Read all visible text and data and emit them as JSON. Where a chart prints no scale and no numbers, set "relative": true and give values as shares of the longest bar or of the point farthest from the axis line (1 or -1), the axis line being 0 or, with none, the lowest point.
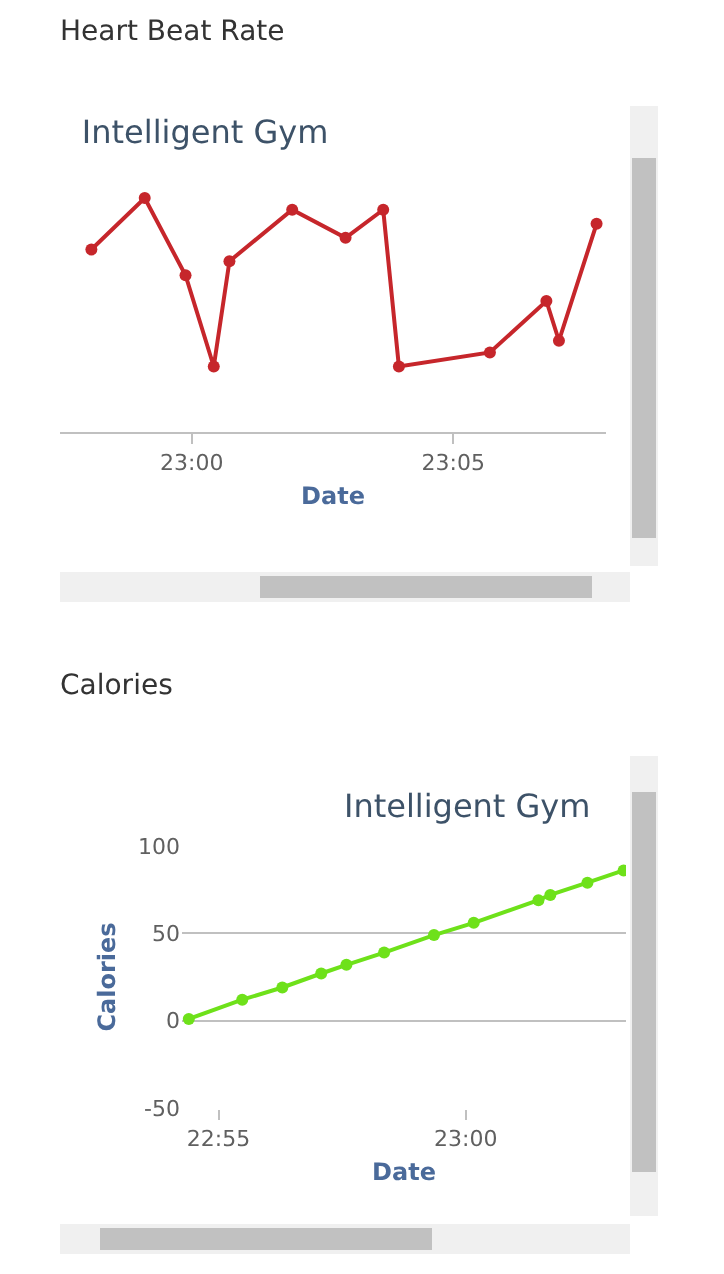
{
  "chart_data": [
    {
      "type": "line",
      "title": "Heart Beat Rate",
      "subtitle": "Intelligent Gym",
      "xlabel": "Date",
      "relative": true,
      "tick_labels": "x",
      "marker": "circle",
      "line_style": "solid",
      "x": [
        22.968,
        22.985,
        22.998,
        23.007,
        23.012,
        23.032,
        23.049,
        23.061,
        23.066,
        23.095,
        23.113,
        23.117,
        23.129
      ],
      "xlim": [
        22.958,
        23.132
      ],
      "xticks": [
        {
          "value": 23,
          "label": "23:00"
        },
        {
          "value": 23.0833,
          "label": "23:05"
        }
      ],
      "series": [
        {
          "color": "#c6262b",
          "values": [
            0.78,
            1,
            0.67,
            0.28,
            0.73,
            0.95,
            0.83,
            0.95,
            0.28,
            0.34,
            0.56,
            0.39,
            0.89
          ]
        }
      ]
    },
    {
      "type": "line",
      "title": "Calories",
      "subtitle": "Intelligent Gym",
      "xlabel": "Date",
      "ylabel": "Calories",
      "grid": "y",
      "marker": "circle",
      "line_style": "solid",
      "x": [
        22.9067,
        22.9247,
        22.9382,
        22.9513,
        22.9598,
        22.9725,
        22.9893,
        23.0027,
        23.0245,
        23.0285,
        23.041,
        23.0532
      ],
      "xlim": [
        22.9044,
        23.054
      ],
      "xticks": [
        {
          "value": 22.9167,
          "label": "22:55"
        },
        {
          "value": 23,
          "label": "23:00"
        }
      ],
      "ylim": [
        -50,
        100
      ],
      "yticks": [
        -50,
        0,
        50,
        100
      ],
      "series": [
        {
          "color": "#6ee11a",
          "values": [
            1,
            12,
            19,
            27,
            32,
            39,
            49,
            56,
            69,
            72,
            79,
            86
          ]
        }
      ]
    }
  ]
}
